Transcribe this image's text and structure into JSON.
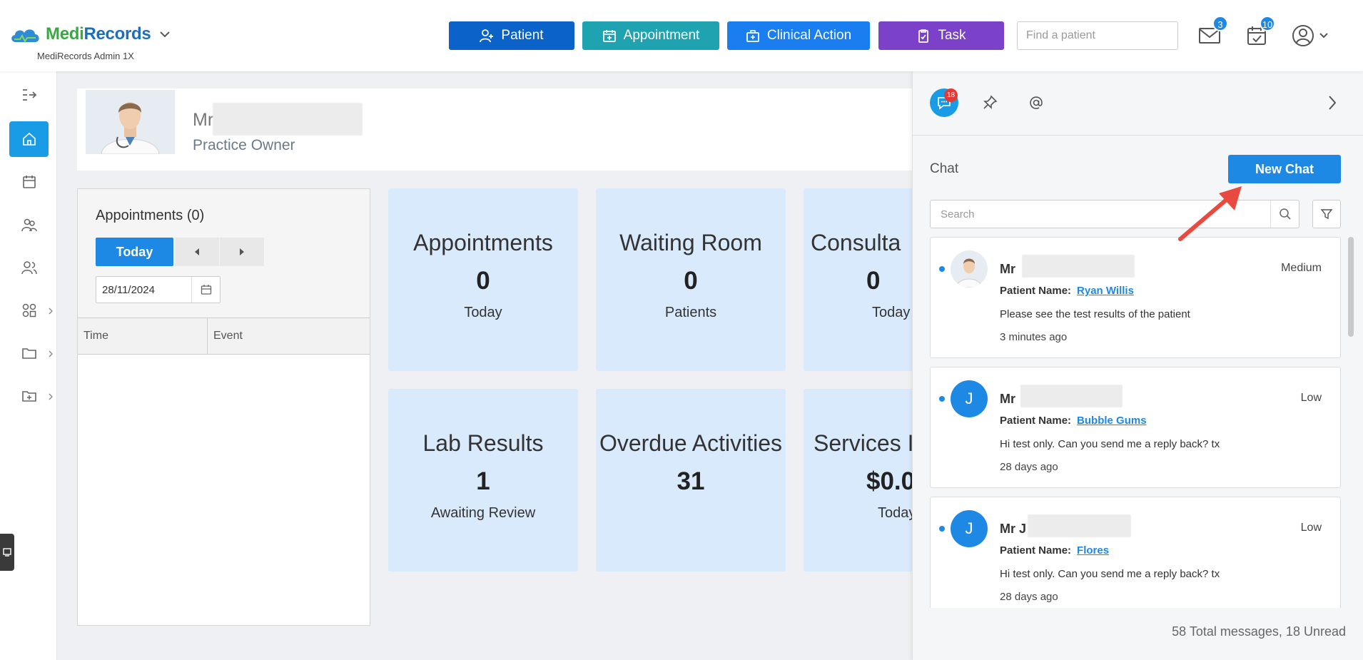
{
  "header": {
    "brand": {
      "part1": "Medi",
      "part2": "Records",
      "subtitle": "MediRecords Admin 1X"
    },
    "actions": [
      {
        "label": "Patient",
        "color": "#0b63c9",
        "icon": "user-plus-icon"
      },
      {
        "label": "Appointment",
        "color": "#20a3b1",
        "icon": "calendar-plus-icon"
      },
      {
        "label": "Clinical Action",
        "color": "#1a7ef0",
        "icon": "medical-bag-icon"
      },
      {
        "label": "Task",
        "color": "#7b41c9",
        "icon": "clipboard-check-icon"
      }
    ],
    "search_placeholder": "Find a patient",
    "mail_badge": "3",
    "tasks_badge": "10"
  },
  "profile": {
    "name_visible": "Mr",
    "role": "Practice Owner"
  },
  "appointments": {
    "title": "Appointments (0)",
    "today_label": "Today",
    "date": "28/11/2024",
    "columns": [
      "Time",
      "Event"
    ]
  },
  "cards": [
    {
      "title": "Appointments",
      "value": "0",
      "subtitle": "Today"
    },
    {
      "title": "Waiting Room",
      "value": "0",
      "subtitle": "Patients"
    },
    {
      "title": "Consulta",
      "value": "0",
      "subtitle": "Today"
    },
    {
      "title": "Lab Results",
      "value": "1",
      "subtitle": "Awaiting Review"
    },
    {
      "title": "Overdue Activities",
      "value": "31",
      "subtitle": ""
    },
    {
      "title": "Services In",
      "value": "$0.0",
      "subtitle": "Today"
    }
  ],
  "chat": {
    "tab_badge": "18",
    "label": "Chat",
    "new_chat_label": "New Chat",
    "search_placeholder": "Search",
    "patient_name_label": "Patient Name:",
    "messages": [
      {
        "sender": "Mr",
        "priority": "Medium",
        "patient": "Ryan Willis",
        "body": "Please see the test results of the patient",
        "time": "3 minutes ago",
        "avatar_letter": ""
      },
      {
        "sender": "Mr",
        "priority": "Low",
        "patient": "Bubble Gums",
        "body": "Hi test only. Can you send me a reply back? tx",
        "time": "28 days ago",
        "avatar_letter": "J"
      },
      {
        "sender": "Mr J",
        "priority": "Low",
        "patient": "Flores",
        "body": "Hi test only. Can you send me a reply back? tx",
        "time": "28 days ago",
        "avatar_letter": "J"
      }
    ],
    "footer": "58 Total messages, 18 Unread"
  }
}
